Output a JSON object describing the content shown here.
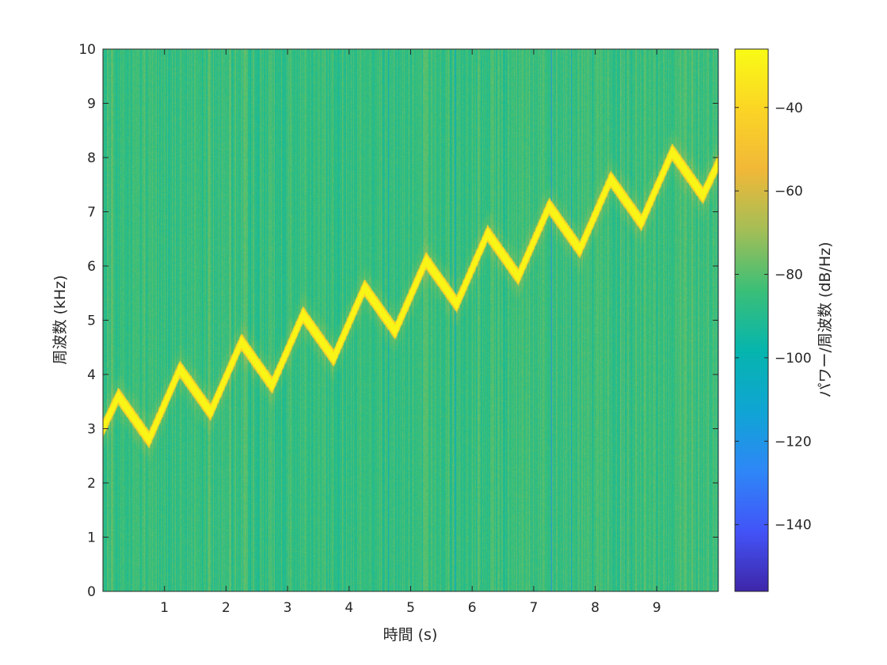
{
  "chart_data": {
    "type": "heatmap",
    "subtype": "spectrogram",
    "xlabel": "時間 (s)",
    "ylabel": "周波数 (kHz)",
    "colorbar_label": "パワー/周波数 (dB/Hz)",
    "xlim": [
      0,
      10
    ],
    "ylim": [
      0,
      10
    ],
    "clim": [
      -156,
      -26
    ],
    "x_ticks": [
      1,
      2,
      3,
      4,
      5,
      6,
      7,
      8,
      9
    ],
    "x_tick_labels": [
      "1",
      "2",
      "3",
      "4",
      "5",
      "6",
      "7",
      "8",
      "9"
    ],
    "y_ticks": [
      0,
      1,
      2,
      3,
      4,
      5,
      6,
      7,
      8,
      9,
      10
    ],
    "y_tick_labels": [
      "0",
      "1",
      "2",
      "3",
      "4",
      "5",
      "6",
      "7",
      "8",
      "9",
      "10"
    ],
    "colorbar_ticks": [
      -40,
      -60,
      -80,
      -100,
      -120,
      -140
    ],
    "colorbar_tick_labels": [
      "−40",
      "−60",
      "−80",
      "−100",
      "−120",
      "−140"
    ],
    "colormap": "parula",
    "colormap_stops": [
      "#3e26a8",
      "#4254f8",
      "#2e87f7",
      "#0fa5d3",
      "#06b5ad",
      "#3bbf77",
      "#a4be56",
      "#f1b838",
      "#fbd525",
      "#f9fb15"
    ],
    "background_level_db": -85,
    "ridge_level_db": -28,
    "ridge": {
      "description_free_params": true,
      "center_start_khz": 3.2,
      "center_slope_khz_per_s": 0.5,
      "oscillation_amplitude_khz": 0.4,
      "oscillation_period_s": 1.0,
      "points": [
        {
          "t": 0.0,
          "f": 3.0
        },
        {
          "t": 0.25,
          "f": 3.6
        },
        {
          "t": 0.75,
          "f": 2.8
        },
        {
          "t": 1.25,
          "f": 4.1
        },
        {
          "t": 1.75,
          "f": 3.3
        },
        {
          "t": 2.25,
          "f": 4.6
        },
        {
          "t": 2.75,
          "f": 3.8
        },
        {
          "t": 3.25,
          "f": 5.1
        },
        {
          "t": 3.75,
          "f": 4.3
        },
        {
          "t": 4.25,
          "f": 5.6
        },
        {
          "t": 4.75,
          "f": 4.8
        },
        {
          "t": 5.25,
          "f": 6.1
        },
        {
          "t": 5.75,
          "f": 5.3
        },
        {
          "t": 6.25,
          "f": 6.6
        },
        {
          "t": 6.75,
          "f": 5.8
        },
        {
          "t": 7.25,
          "f": 7.1
        },
        {
          "t": 7.75,
          "f": 6.3
        },
        {
          "t": 8.25,
          "f": 7.6
        },
        {
          "t": 8.75,
          "f": 6.8
        },
        {
          "t": 9.25,
          "f": 8.1
        },
        {
          "t": 9.75,
          "f": 7.3
        },
        {
          "t": 10.0,
          "f": 7.9
        }
      ]
    },
    "dark_vertical_lines_s": [
      4.63,
      5.72,
      7.28,
      7.6
    ]
  }
}
